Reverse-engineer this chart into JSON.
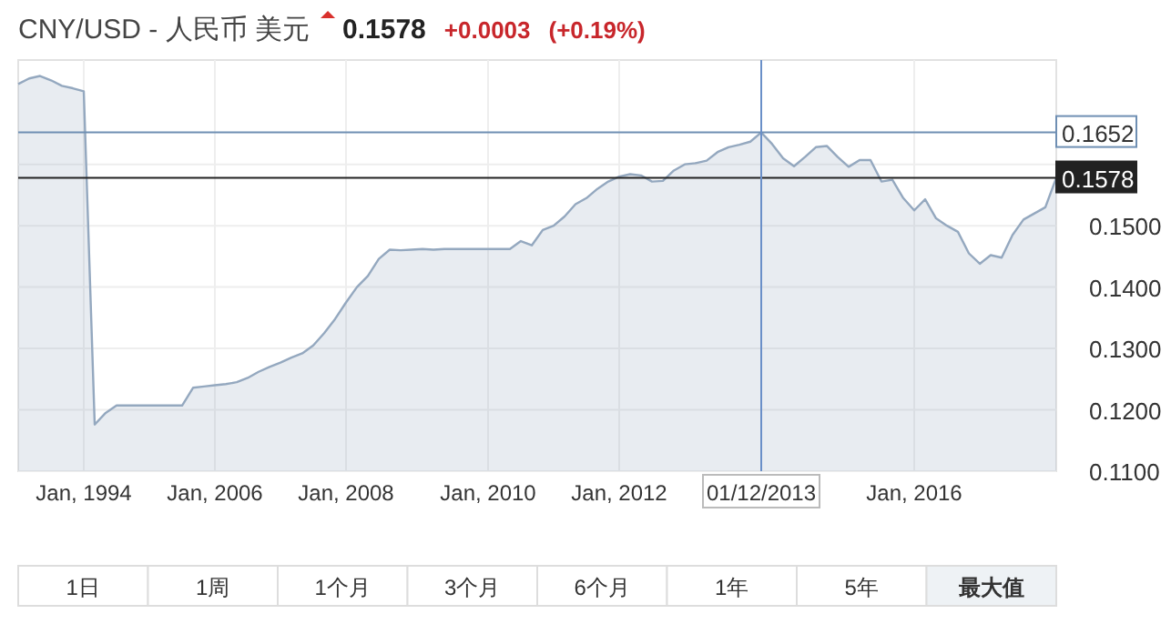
{
  "chart_data": {
    "type": "area",
    "title": "CNY/USD - 人民币 美元",
    "subtitle": "0.1578",
    "annotations": [
      "+0.0003",
      "(+0.19%)",
      "1日",
      "1周",
      "1个月",
      "3个月",
      "6个月",
      "1年",
      "5年",
      "最大值"
    ],
    "categories": [
      null,
      null,
      null,
      null,
      null,
      null,
      "Jan, 1994",
      null,
      null,
      null,
      null,
      null,
      null,
      null,
      null,
      null,
      null,
      null,
      "Jan, 2006",
      null,
      null,
      null,
      null,
      null,
      null,
      null,
      null,
      null,
      null,
      null,
      "Jan, 2008",
      null,
      null,
      null,
      null,
      null,
      null,
      null,
      null,
      null,
      null,
      null,
      null,
      "Jan, 2010",
      null,
      null,
      null,
      null,
      null,
      null,
      null,
      null,
      null,
      null,
      null,
      "Jan, 2012",
      null,
      null,
      null,
      null,
      null,
      null,
      null,
      null,
      null,
      null,
      null,
      null,
      "01/12/2013",
      null,
      null,
      null,
      null,
      null,
      null,
      null,
      null,
      null,
      null,
      null,
      null,
      null,
      "Jan, 2016",
      null,
      null,
      null,
      null,
      null,
      null,
      null,
      null,
      null,
      null,
      null,
      null,
      null
    ],
    "series": [
      {
        "color": "#94a8bf",
        "values": [
          0.1731,
          0.174,
          0.1744,
          0.1737,
          0.1728,
          0.1724,
          0.1719,
          0.1176,
          0.1195,
          0.1207,
          0.1207,
          0.1207,
          0.1207,
          0.1207,
          0.1207,
          0.1207,
          0.1236,
          0.1238,
          0.124,
          0.1242,
          0.1245,
          0.1252,
          0.1262,
          0.127,
          0.1277,
          0.1285,
          0.1292,
          0.1305,
          0.1325,
          0.1348,
          0.1375,
          0.14,
          0.1418,
          0.1446,
          0.1461,
          0.146,
          0.1461,
          0.1462,
          0.1461,
          0.1462,
          0.1462,
          0.1462,
          0.1462,
          0.1462,
          0.1462,
          0.1462,
          0.1475,
          0.1468,
          0.1493,
          0.15,
          0.1515,
          0.1535,
          0.1545,
          0.156,
          0.1572,
          0.158,
          0.1584,
          0.1582,
          0.1572,
          0.1573,
          0.159,
          0.16,
          0.1602,
          0.1606,
          0.162,
          0.1628,
          0.1632,
          0.1637,
          0.1652,
          0.1633,
          0.161,
          0.1597,
          0.1612,
          0.1628,
          0.163,
          0.1612,
          0.1596,
          0.1607,
          0.1607,
          0.1572,
          0.1575,
          0.1545,
          0.1525,
          0.1543,
          0.1512,
          0.15,
          0.149,
          0.1455,
          0.1438,
          0.1452,
          0.1448,
          0.1485,
          0.151,
          0.152,
          0.153,
          0.1578
        ]
      }
    ],
    "ylim": [
      0.11,
      0.177
    ],
    "yticks": [
      {
        "value": 0.11,
        "label": "0.1100"
      },
      {
        "value": 0.12,
        "label": "0.1200"
      },
      {
        "value": 0.13,
        "label": "0.1300"
      },
      {
        "value": 0.14,
        "label": "0.1400"
      },
      {
        "value": 0.15,
        "label": "0.1500"
      },
      {
        "value": 0.16,
        "label": null
      }
    ],
    "grid": true,
    "ref_lines": [
      {
        "axis": "y",
        "value": 0.1652,
        "label": "0.1652",
        "color": "#6f8fb3"
      },
      {
        "axis": "y",
        "value": 0.1578,
        "label": "0.1578",
        "color": "#222222"
      },
      {
        "axis": "x",
        "value": "01/12/2013",
        "color": "#6a8fc8"
      }
    ]
  }
}
